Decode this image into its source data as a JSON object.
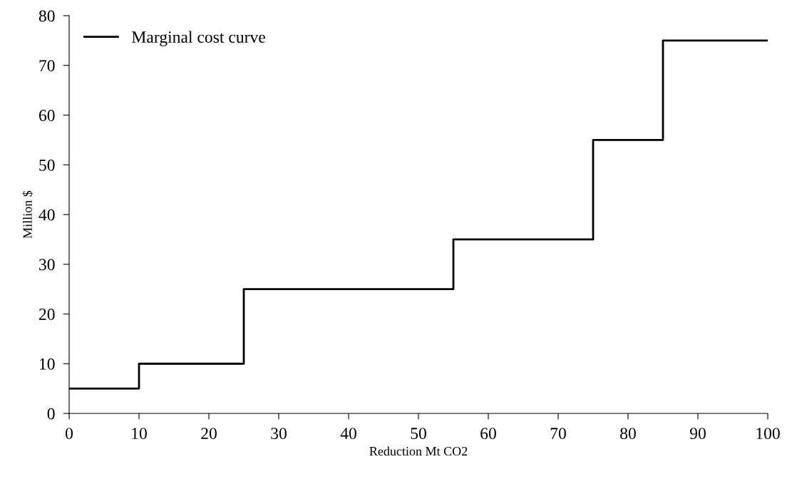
{
  "chart_data": {
    "type": "step",
    "xlabel": "Reduction Mt CO2",
    "ylabel": "Million $",
    "x": [
      0,
      10,
      25,
      55,
      75,
      85,
      100
    ],
    "series": [
      {
        "name": "Marginal cost curve",
        "color": "#000000",
        "values": [
          5,
          10,
          25,
          35,
          55,
          75,
          75
        ]
      }
    ],
    "xlim": [
      0,
      100
    ],
    "xticks": [
      0,
      10,
      20,
      30,
      40,
      50,
      60,
      70,
      80,
      90,
      100
    ],
    "ylim": [
      0,
      80
    ],
    "yticks": [
      0,
      10,
      20,
      30,
      40,
      50,
      60,
      70,
      80
    ],
    "grid": false,
    "legend": "top left",
    "marker": "none",
    "line_style": "solid"
  }
}
